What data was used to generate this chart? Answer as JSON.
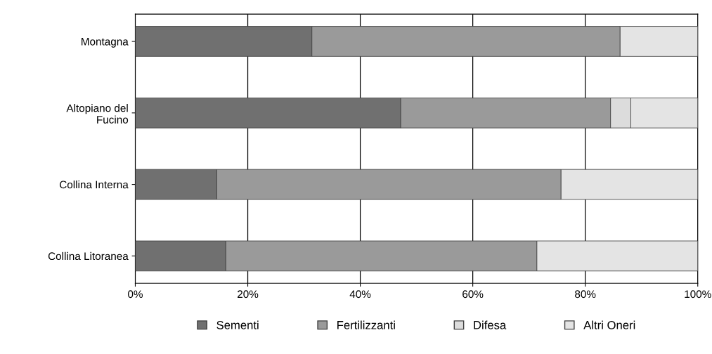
{
  "chart_data": {
    "type": "bar",
    "orientation": "horizontal",
    "stacked": true,
    "categories": [
      "Montagna",
      "Altopiano del\nFucino",
      "Collina Interna",
      "Collina Litoranea"
    ],
    "series": [
      {
        "name": "Sementi",
        "color": "#707070",
        "values": [
          31.4,
          47.2,
          14.5,
          16.1
        ]
      },
      {
        "name": "Fertilizzanti",
        "color": "#9a9a9a",
        "values": [
          54.8,
          37.3,
          61.2,
          55.3
        ]
      },
      {
        "name": "Difesa",
        "color": "#dcdcdc",
        "values": [
          null,
          3.6,
          null,
          null
        ]
      },
      {
        "name": "Altri Oneri",
        "color": "#e4e4e4",
        "values": [
          13.8,
          11.9,
          24.3,
          28.6
        ]
      }
    ],
    "xlim": [
      0,
      100
    ],
    "xticks": [
      {
        "value": 0,
        "label": "0%"
      },
      {
        "value": 20,
        "label": "20%"
      },
      {
        "value": 40,
        "label": "40%"
      },
      {
        "value": 60,
        "label": "60%"
      },
      {
        "value": 80,
        "label": "80%"
      },
      {
        "value": 100,
        "label": "100%"
      }
    ],
    "grid": "x",
    "legend": "bottom"
  }
}
